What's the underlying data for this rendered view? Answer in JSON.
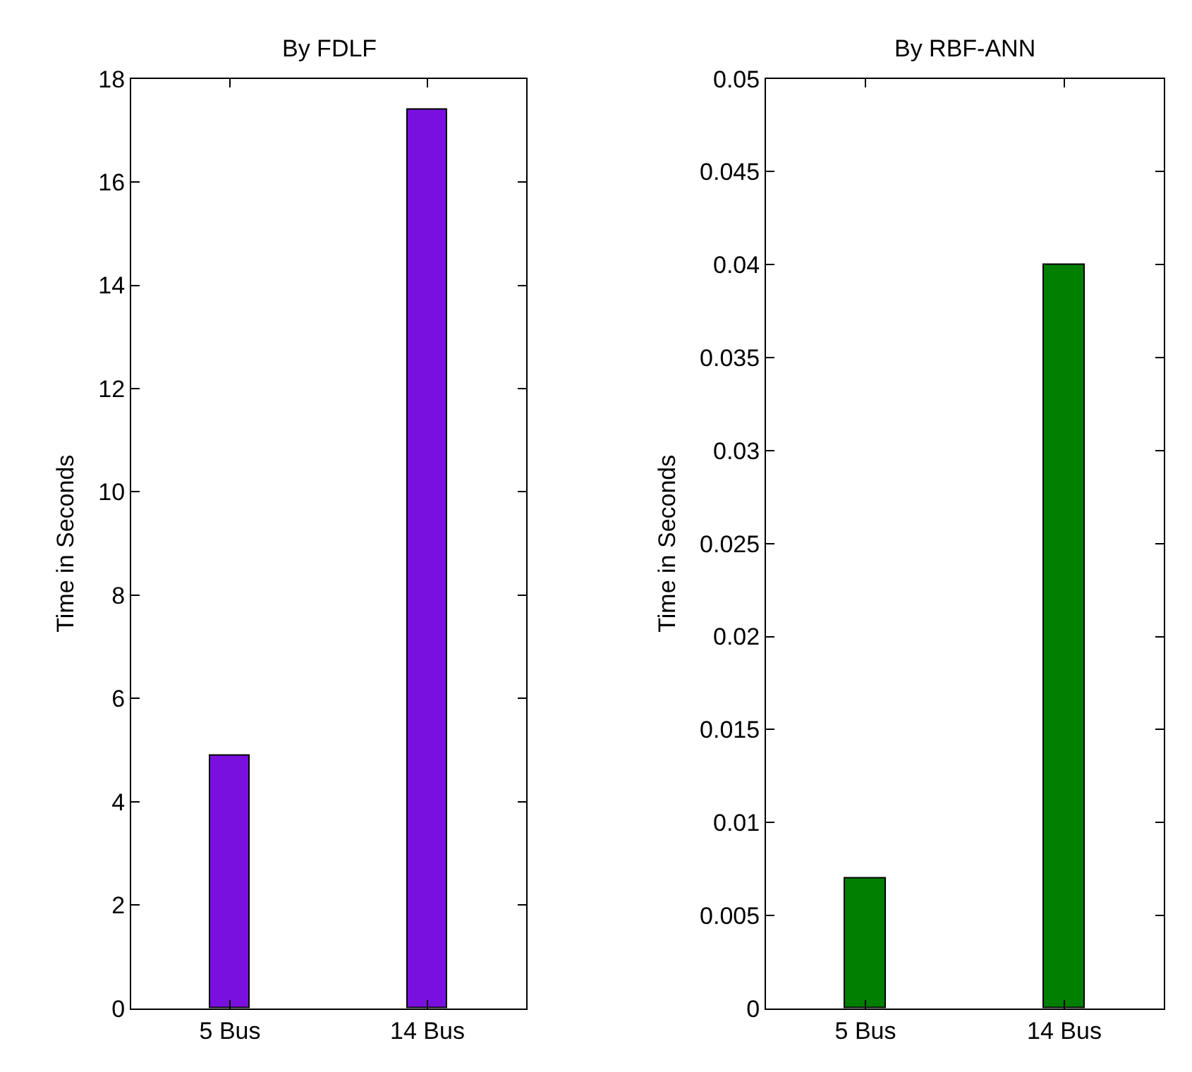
{
  "chart_data": [
    {
      "type": "bar",
      "title": "By FDLF",
      "ylabel": "Time in Seconds",
      "categories": [
        "5 Bus",
        "14 Bus"
      ],
      "values": [
        4.9,
        17.4
      ],
      "color": "#7a10e0",
      "ylim": [
        0,
        18
      ],
      "yticks": [
        0,
        2,
        4,
        6,
        8,
        10,
        12,
        14,
        16,
        18
      ]
    },
    {
      "type": "bar",
      "title": "By RBF-ANN",
      "ylabel": "Time in Seconds",
      "categories": [
        "5 Bus",
        "14 Bus"
      ],
      "values": [
        0.007,
        0.04
      ],
      "color": "#007f00",
      "ylim": [
        0,
        0.05
      ],
      "yticks": [
        0,
        0.005,
        0.01,
        0.015,
        0.02,
        0.025,
        0.03,
        0.035,
        0.04,
        0.045,
        0.05
      ]
    }
  ]
}
